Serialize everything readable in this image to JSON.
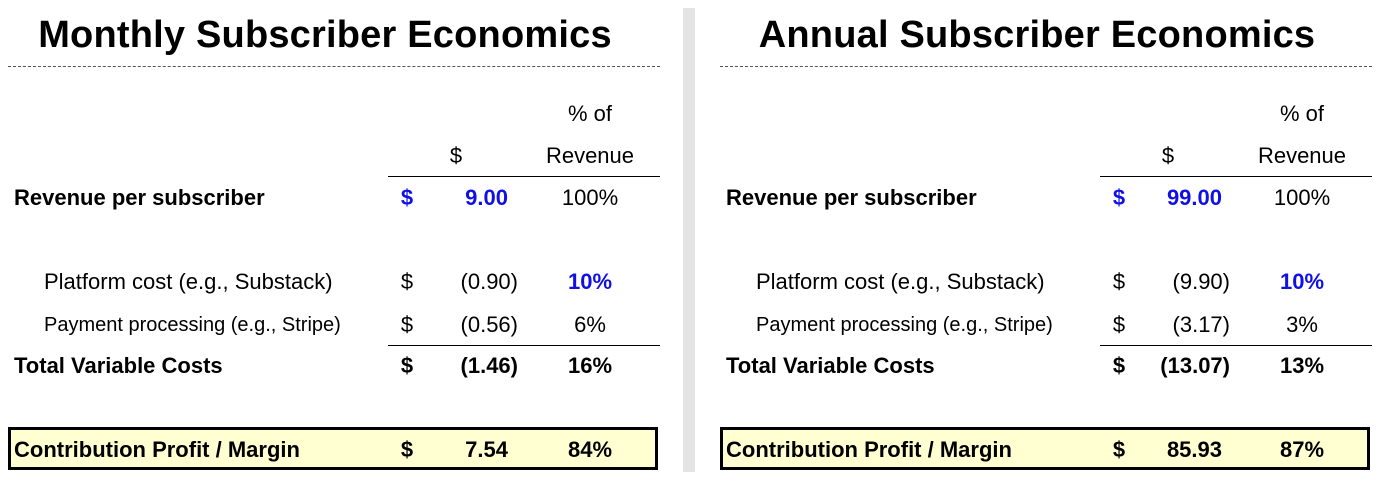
{
  "monthly": {
    "title": "Monthly Subscriber Economics",
    "header": {
      "dollar": "$",
      "pct_line1": "% of",
      "pct_line2": "Revenue"
    },
    "revenue": {
      "label": "Revenue per subscriber",
      "sign": "$",
      "value": "9.00",
      "pct": "100%"
    },
    "platform": {
      "label": "Platform cost (e.g., Substack)",
      "sign": "$",
      "value": "(0.90)",
      "pct": "10%"
    },
    "payment": {
      "label": "Payment processing (e.g., Stripe)",
      "sign": "$",
      "value": "(0.56)",
      "pct": "6%"
    },
    "total_var": {
      "label": "Total Variable Costs",
      "sign": "$",
      "value": "(1.46)",
      "pct": "16%"
    },
    "contribution": {
      "label": "Contribution Profit / Margin",
      "sign": "$",
      "value": "7.54",
      "pct": "84%"
    }
  },
  "annual": {
    "title": "Annual Subscriber Economics",
    "header": {
      "dollar": "$",
      "pct_line1": "% of",
      "pct_line2": "Revenue"
    },
    "revenue": {
      "label": "Revenue per subscriber",
      "sign": "$",
      "value": "99.00",
      "pct": "100%"
    },
    "platform": {
      "label": "Platform cost (e.g., Substack)",
      "sign": "$",
      "value": "(9.90)",
      "pct": "10%"
    },
    "payment": {
      "label": "Payment processing (e.g., Stripe)",
      "sign": "$",
      "value": "(3.17)",
      "pct": "3%"
    },
    "total_var": {
      "label": "Total Variable Costs",
      "sign": "$",
      "value": "(13.07)",
      "pct": "13%"
    },
    "contribution": {
      "label": "Contribution Profit / Margin",
      "sign": "$",
      "value": "85.93",
      "pct": "87%"
    }
  },
  "colors": {
    "input_blue": "#1010e6",
    "highlight_fill": "#ffffd2",
    "divider": "#e4e4e4"
  }
}
